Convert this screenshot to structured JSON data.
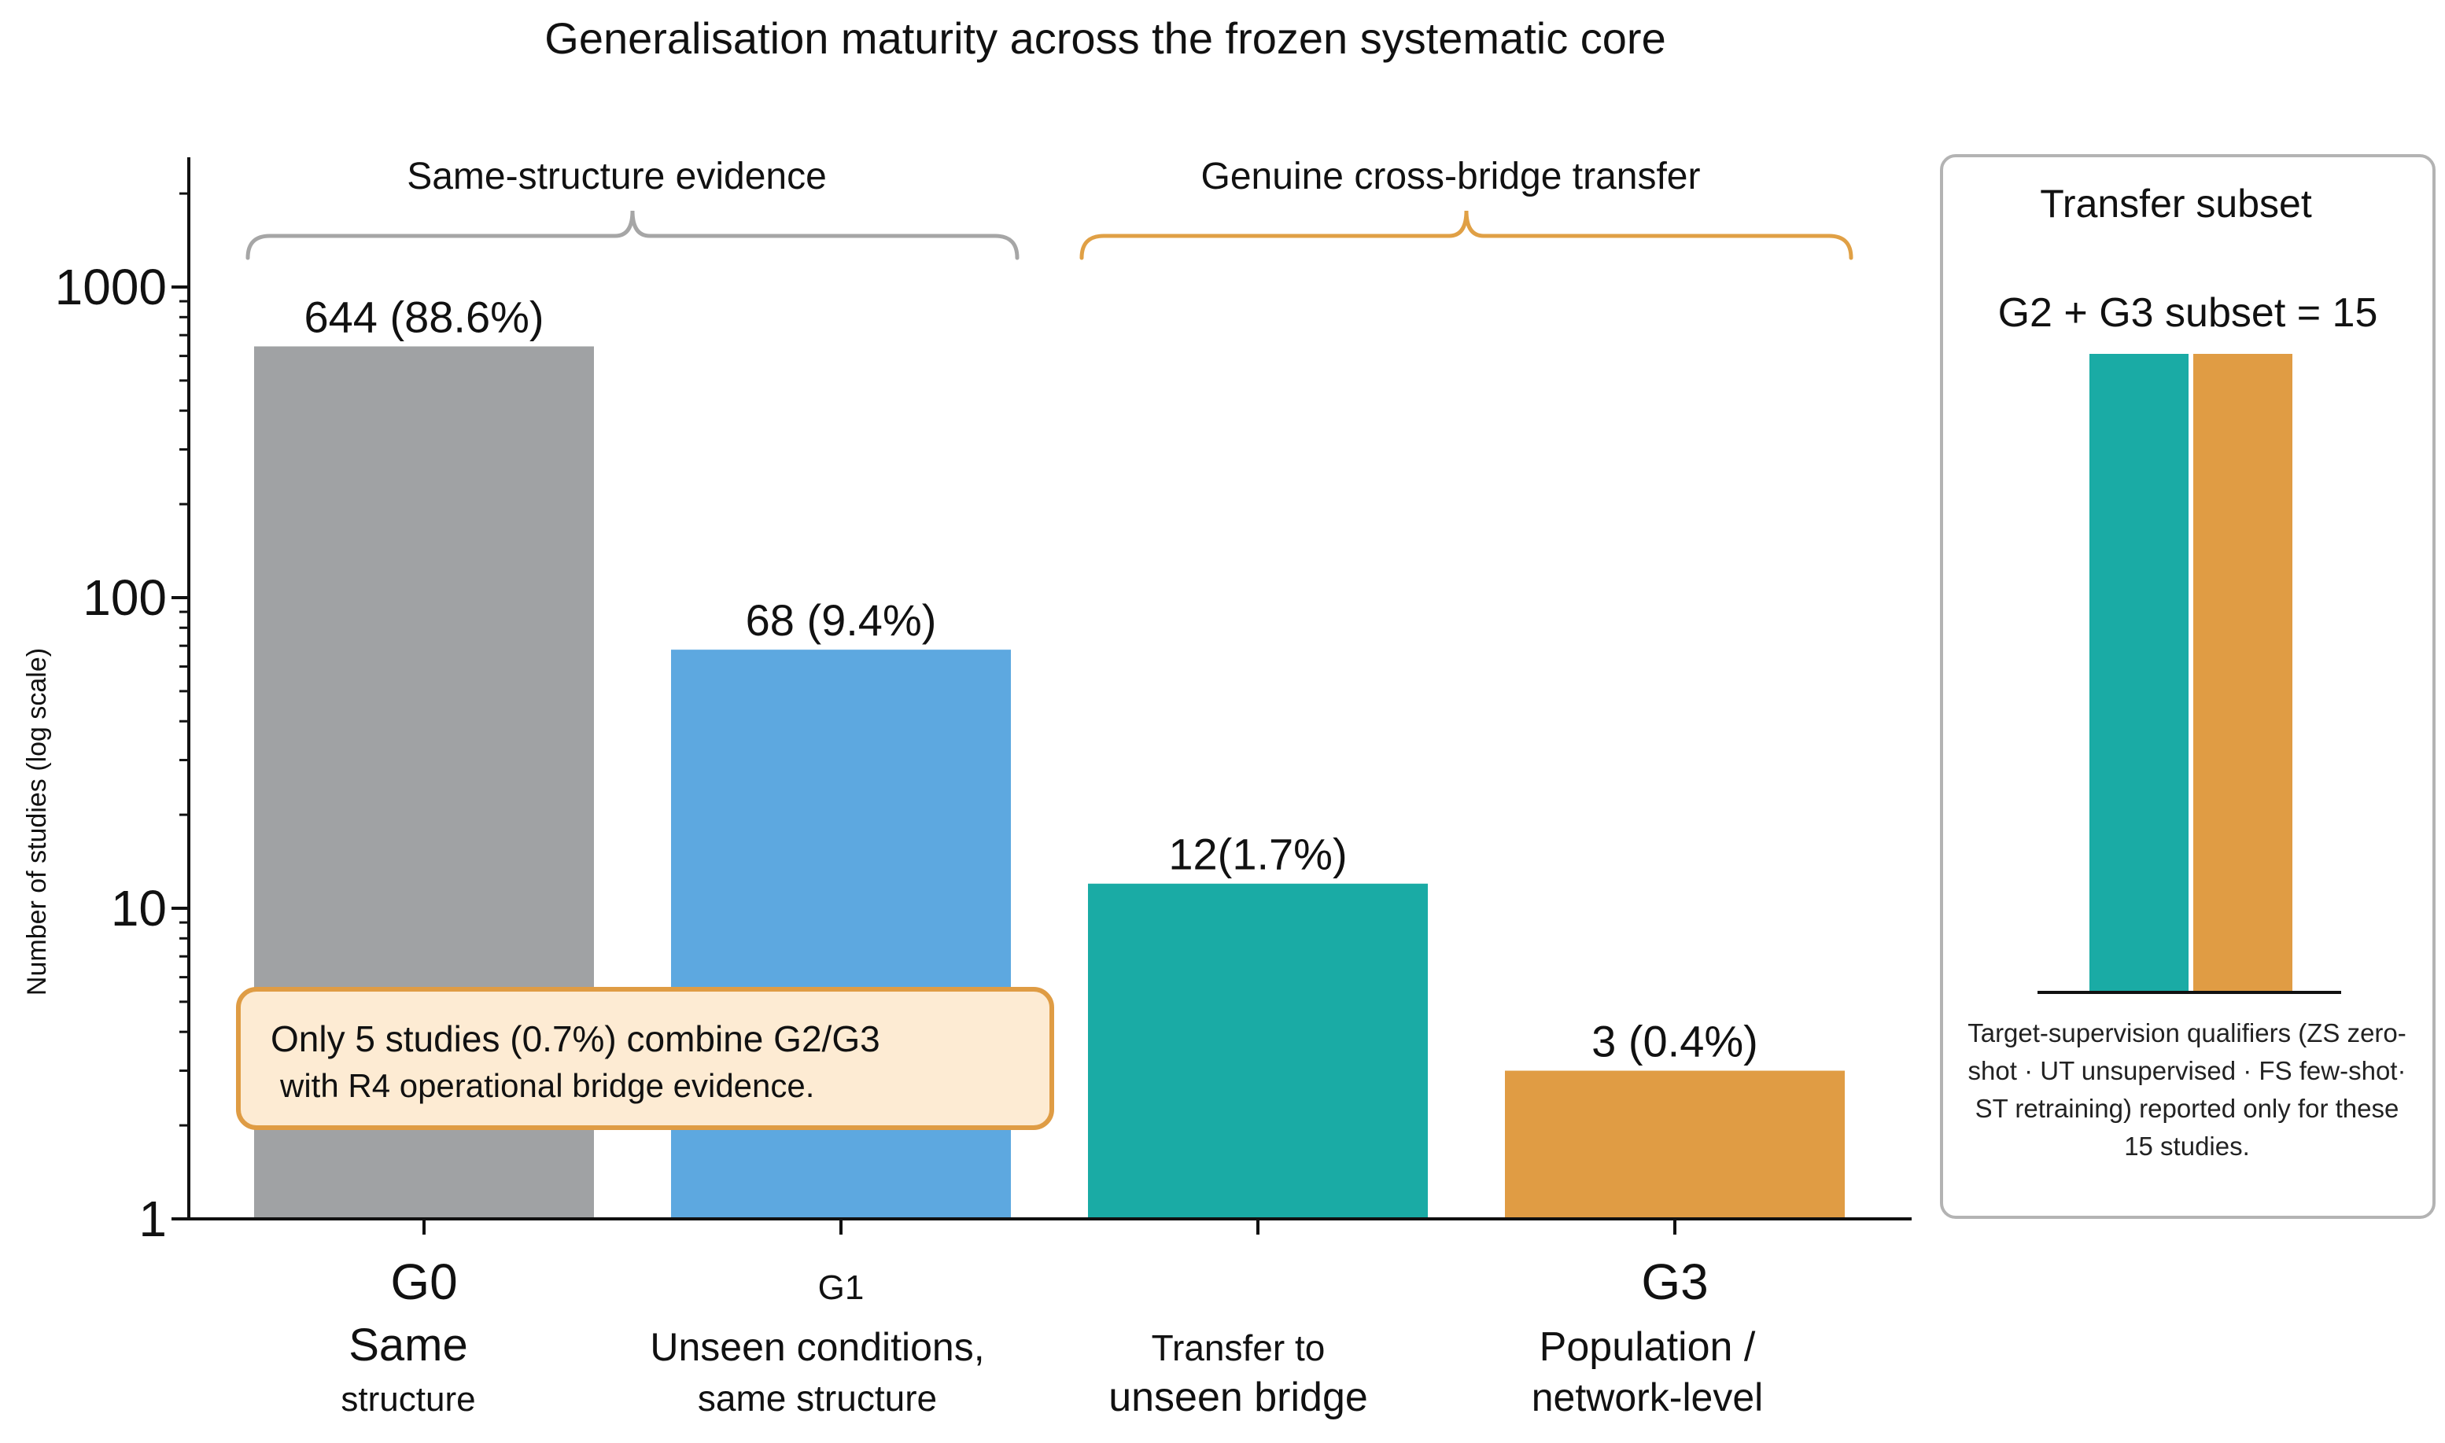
{
  "chart_data": {
    "type": "bar",
    "title": "Generalisation maturity across the frozen systematic core",
    "ylabel": "Number of studies (log scale)",
    "yscale": "log",
    "ylim": [
      1,
      2000
    ],
    "yticks": [
      1,
      10,
      100,
      1000
    ],
    "ytick_labels": [
      "1",
      "10",
      "100",
      "1000"
    ],
    "categories": [
      {
        "code": "G0",
        "name_lines": [
          "Same",
          "structure"
        ]
      },
      {
        "code": "G1",
        "name_lines": [
          "Unseen conditions,",
          "same structure"
        ]
      },
      {
        "code": "",
        "name_lines": [
          "Transfer to",
          "unseen bridge"
        ]
      },
      {
        "code": "G3",
        "name_lines": [
          "Population /",
          "network-level"
        ]
      }
    ],
    "values": [
      644,
      68,
      12,
      3
    ],
    "data_labels": [
      "644 (88.6%)",
      "68 (9.4%)",
      "12(1.7%)",
      "3 (0.4%)"
    ],
    "colors": [
      "#a0a2a4",
      "#5da8e0",
      "#1aaba5",
      "#e09c44"
    ],
    "groups": [
      {
        "label": "Same-structure evidence",
        "categories": [
          0,
          1
        ],
        "color": "#a6a6a6"
      },
      {
        "label": "Genuine cross-bridge transfer",
        "categories": [
          2,
          3
        ],
        "color": "#e0a045"
      }
    ],
    "grid": false
  },
  "callout": {
    "line1": "Only 5 studies (0.7%) combine G2/G3",
    "line2": "with R4 operational bridge evidence.",
    "fill": "#fdebd3",
    "border": "#df9c44"
  },
  "side_panel": {
    "title": "Transfer subset",
    "subset_label": "G2 + G3 subset = 15",
    "bar_colors": [
      "#1aaba5",
      "#e09c44"
    ],
    "note": "Target-supervision qualifiers (ZS zero-shot · UT unsupervised · FS few-shot· ST retraining) reported only for these 15 studies."
  }
}
